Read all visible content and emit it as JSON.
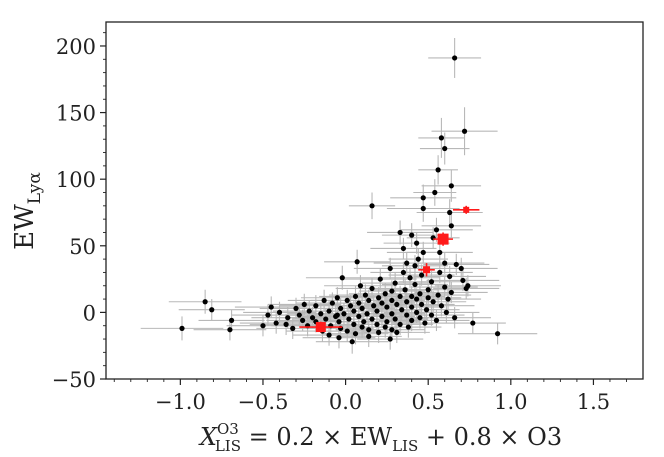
{
  "chart_data": {
    "type": "scatter",
    "title": "",
    "xlabel": {
      "var": "X",
      "var_sub": "LIS",
      "var_sup": "O3",
      "rhs_1": " = 0.2 × EW",
      "rhs_1_sub": "LIS",
      "rhs_2": " + 0.8 × O3"
    },
    "ylabel": {
      "base": "EW",
      "sub": "Lyα"
    },
    "xlim": [
      -1.45,
      1.8
    ],
    "ylim": [
      -50,
      218
    ],
    "xticks": [
      -1.0,
      -0.5,
      0.0,
      0.5,
      1.0,
      1.5
    ],
    "xtick_labels": [
      "−1.0",
      "−0.5",
      "0.0",
      "0.5",
      "1.0",
      "1.5"
    ],
    "yticks": [
      -50,
      0,
      50,
      100,
      150,
      200
    ],
    "ytick_labels": [
      "−50",
      "0",
      "50",
      "100",
      "150",
      "200"
    ],
    "grid": false,
    "colors": {
      "black": "#000000",
      "red": "#ff1a1a",
      "errorbar": "#b8b8b8",
      "axis": "#222222"
    },
    "series": [
      {
        "color": "black",
        "points": [
          {
            "x": 0.66,
            "y": 191,
            "xerr": 0.16,
            "yerr": 15
          },
          {
            "x": 0.72,
            "y": 136,
            "xerr": 0.2,
            "yerr": 18
          },
          {
            "x": 0.58,
            "y": 131,
            "xerr": 0.14,
            "yerr": 15
          },
          {
            "x": 0.6,
            "y": 123,
            "xerr": 0.15,
            "yerr": 12
          },
          {
            "x": 0.56,
            "y": 107,
            "xerr": 0.12,
            "yerr": 11
          },
          {
            "x": 0.64,
            "y": 95,
            "xerr": 0.18,
            "yerr": 12
          },
          {
            "x": 0.54,
            "y": 90,
            "xerr": 0.13,
            "yerr": 10
          },
          {
            "x": 0.47,
            "y": 86,
            "xerr": 0.2,
            "yerr": 10
          },
          {
            "x": 0.16,
            "y": 80,
            "xerr": 0.14,
            "yerr": 10
          },
          {
            "x": 0.47,
            "y": 78,
            "xerr": 0.22,
            "yerr": 10
          },
          {
            "x": 0.63,
            "y": 75,
            "xerr": 0.2,
            "yerr": 10
          },
          {
            "x": 0.64,
            "y": 65,
            "xerr": 0.18,
            "yerr": 9
          },
          {
            "x": 0.55,
            "y": 62,
            "xerr": 0.22,
            "yerr": 9
          },
          {
            "x": 0.33,
            "y": 60,
            "xerr": 0.2,
            "yerr": 9
          },
          {
            "x": 0.4,
            "y": 58,
            "xerr": 0.18,
            "yerr": 9
          },
          {
            "x": 0.53,
            "y": 56,
            "xerr": 0.16,
            "yerr": 8
          },
          {
            "x": 0.43,
            "y": 52,
            "xerr": 0.2,
            "yerr": 8
          },
          {
            "x": 0.35,
            "y": 48,
            "xerr": 0.2,
            "yerr": 8
          },
          {
            "x": 0.47,
            "y": 45,
            "xerr": 0.22,
            "yerr": 8
          },
          {
            "x": 0.44,
            "y": 40,
            "xerr": 0.18,
            "yerr": 8
          },
          {
            "x": 0.37,
            "y": 37,
            "xerr": 0.2,
            "yerr": 8
          },
          {
            "x": 0.6,
            "y": 37,
            "xerr": 0.24,
            "yerr": 8
          },
          {
            "x": 0.07,
            "y": 38,
            "xerr": 0.2,
            "yerr": 9
          },
          {
            "x": 0.67,
            "y": 36,
            "xerr": 0.2,
            "yerr": 8
          },
          {
            "x": 0.7,
            "y": 33,
            "xerr": 0.22,
            "yerr": 8
          },
          {
            "x": 0.27,
            "y": 33,
            "xerr": 0.22,
            "yerr": 8
          },
          {
            "x": 0.57,
            "y": 30,
            "xerr": 0.2,
            "yerr": 8
          },
          {
            "x": 0.46,
            "y": 28,
            "xerr": 0.2,
            "yerr": 8
          },
          {
            "x": 0.63,
            "y": 27,
            "xerr": 0.22,
            "yerr": 8
          },
          {
            "x": 0.39,
            "y": 26,
            "xerr": 0.18,
            "yerr": 8
          },
          {
            "x": -0.02,
            "y": 26,
            "xerr": 0.22,
            "yerr": 9
          },
          {
            "x": 0.71,
            "y": 24,
            "xerr": 0.22,
            "yerr": 8
          },
          {
            "x": 0.52,
            "y": 23,
            "xerr": 0.2,
            "yerr": 8
          },
          {
            "x": 0.3,
            "y": 22,
            "xerr": 0.2,
            "yerr": 8
          },
          {
            "x": 0.42,
            "y": 21,
            "xerr": 0.2,
            "yerr": 8
          },
          {
            "x": 0.74,
            "y": 20,
            "xerr": 0.2,
            "yerr": 8
          },
          {
            "x": 0.6,
            "y": 19,
            "xerr": 0.2,
            "yerr": 8
          },
          {
            "x": 0.16,
            "y": 18,
            "xerr": 0.22,
            "yerr": 8
          },
          {
            "x": 0.73,
            "y": 18,
            "xerr": 0.2,
            "yerr": 8
          },
          {
            "x": 0.5,
            "y": 17,
            "xerr": 0.22,
            "yerr": 8
          },
          {
            "x": 0.36,
            "y": 17,
            "xerr": 0.2,
            "yerr": 8
          },
          {
            "x": 0.28,
            "y": 16,
            "xerr": 0.2,
            "yerr": 8
          },
          {
            "x": 0.64,
            "y": 15,
            "xerr": 0.22,
            "yerr": 8
          },
          {
            "x": 0.45,
            "y": 14,
            "xerr": 0.2,
            "yerr": 8
          },
          {
            "x": 0.24,
            "y": 14,
            "xerr": 0.22,
            "yerr": 8
          },
          {
            "x": 0.56,
            "y": 13,
            "xerr": 0.2,
            "yerr": 8
          },
          {
            "x": 0.12,
            "y": 13,
            "xerr": 0.22,
            "yerr": 8
          },
          {
            "x": 0.4,
            "y": 12,
            "xerr": 0.2,
            "yerr": 8
          },
          {
            "x": 0.33,
            "y": 12,
            "xerr": 0.2,
            "yerr": 8
          },
          {
            "x": 0.06,
            "y": 12,
            "xerr": 0.22,
            "yerr": 8
          },
          {
            "x": 0.5,
            "y": 11,
            "xerr": 0.2,
            "yerr": 8
          },
          {
            "x": 0.2,
            "y": 11,
            "xerr": 0.2,
            "yerr": 8
          },
          {
            "x": -0.05,
            "y": 11,
            "xerr": 0.22,
            "yerr": 8
          },
          {
            "x": 0.62,
            "y": 10,
            "xerr": 0.2,
            "yerr": 8
          },
          {
            "x": 0.43,
            "y": 10,
            "xerr": 0.2,
            "yerr": 8
          },
          {
            "x": 0.28,
            "y": 9,
            "xerr": 0.2,
            "yerr": 8
          },
          {
            "x": 0.14,
            "y": 9,
            "xerr": 0.2,
            "yerr": 8
          },
          {
            "x": 0.01,
            "y": 9,
            "xerr": 0.22,
            "yerr": 8
          },
          {
            "x": -0.13,
            "y": 9,
            "xerr": 0.22,
            "yerr": 8
          },
          {
            "x": -0.85,
            "y": 8,
            "xerr": 0.22,
            "yerr": 9
          },
          {
            "x": 0.53,
            "y": 8,
            "xerr": 0.2,
            "yerr": 8
          },
          {
            "x": 0.37,
            "y": 8,
            "xerr": 0.2,
            "yerr": 8
          },
          {
            "x": 0.22,
            "y": 7,
            "xerr": 0.2,
            "yerr": 8
          },
          {
            "x": 0.08,
            "y": 7,
            "xerr": 0.2,
            "yerr": 8
          },
          {
            "x": -0.08,
            "y": 7,
            "xerr": 0.22,
            "yerr": 8
          },
          {
            "x": -0.25,
            "y": 6,
            "xerr": 0.22,
            "yerr": 8
          },
          {
            "x": 0.46,
            "y": 6,
            "xerr": 0.2,
            "yerr": 8
          },
          {
            "x": 0.31,
            "y": 6,
            "xerr": 0.2,
            "yerr": 8
          },
          {
            "x": 0.17,
            "y": 5,
            "xerr": 0.2,
            "yerr": 8
          },
          {
            "x": 0.03,
            "y": 5,
            "xerr": 0.2,
            "yerr": 8
          },
          {
            "x": -0.18,
            "y": 5,
            "xerr": 0.22,
            "yerr": 8
          },
          {
            "x": 0.58,
            "y": 5,
            "xerr": 0.2,
            "yerr": 8
          },
          {
            "x": 0.4,
            "y": 4,
            "xerr": 0.2,
            "yerr": 8
          },
          {
            "x": 0.25,
            "y": 4,
            "xerr": 0.2,
            "yerr": 8
          },
          {
            "x": 0.1,
            "y": 3,
            "xerr": 0.2,
            "yerr": 8
          },
          {
            "x": -0.03,
            "y": 3,
            "xerr": 0.2,
            "yerr": 8
          },
          {
            "x": -0.3,
            "y": 3,
            "xerr": 0.22,
            "yerr": 8
          },
          {
            "x": -0.81,
            "y": 2,
            "xerr": 0.2,
            "yerr": 8
          },
          {
            "x": 0.49,
            "y": 2,
            "xerr": 0.2,
            "yerr": 8
          },
          {
            "x": 0.34,
            "y": 2,
            "xerr": 0.2,
            "yerr": 8
          },
          {
            "x": 0.19,
            "y": 1,
            "xerr": 0.2,
            "yerr": 8
          },
          {
            "x": 0.05,
            "y": 1,
            "xerr": 0.2,
            "yerr": 8
          },
          {
            "x": -0.1,
            "y": 1,
            "xerr": 0.2,
            "yerr": 8
          },
          {
            "x": -0.22,
            "y": 1,
            "xerr": 0.22,
            "yerr": 8
          },
          {
            "x": -0.4,
            "y": 0,
            "xerr": 0.22,
            "yerr": 8
          },
          {
            "x": 0.61,
            "y": 0,
            "xerr": 0.2,
            "yerr": 8
          },
          {
            "x": 0.43,
            "y": 0,
            "xerr": 0.2,
            "yerr": 8
          },
          {
            "x": 0.28,
            "y": -1,
            "xerr": 0.2,
            "yerr": 8
          },
          {
            "x": 0.13,
            "y": -1,
            "xerr": 0.2,
            "yerr": 8
          },
          {
            "x": -0.01,
            "y": -1,
            "xerr": 0.2,
            "yerr": 8
          },
          {
            "x": -0.15,
            "y": -1,
            "xerr": 0.2,
            "yerr": 8
          },
          {
            "x": -0.28,
            "y": -2,
            "xerr": 0.22,
            "yerr": 8
          },
          {
            "x": -0.47,
            "y": -2,
            "xerr": 0.22,
            "yerr": 8
          },
          {
            "x": 0.52,
            "y": -2,
            "xerr": 0.2,
            "yerr": 8
          },
          {
            "x": 0.37,
            "y": -2,
            "xerr": 0.2,
            "yerr": 8
          },
          {
            "x": 0.22,
            "y": -3,
            "xerr": 0.2,
            "yerr": 8
          },
          {
            "x": 0.08,
            "y": -3,
            "xerr": 0.2,
            "yerr": 8
          },
          {
            "x": -0.06,
            "y": -3,
            "xerr": 0.2,
            "yerr": 8
          },
          {
            "x": -0.2,
            "y": -4,
            "xerr": 0.22,
            "yerr": 8
          },
          {
            "x": -0.35,
            "y": -4,
            "xerr": 0.22,
            "yerr": 8
          },
          {
            "x": 0.66,
            "y": -4,
            "xerr": 0.22,
            "yerr": 8
          },
          {
            "x": 0.45,
            "y": -4,
            "xerr": 0.2,
            "yerr": 8
          },
          {
            "x": 0.3,
            "y": -5,
            "xerr": 0.2,
            "yerr": 8
          },
          {
            "x": 0.16,
            "y": -5,
            "xerr": 0.2,
            "yerr": 8
          },
          {
            "x": 0.02,
            "y": -5,
            "xerr": 0.2,
            "yerr": 8
          },
          {
            "x": -0.12,
            "y": -5,
            "xerr": 0.2,
            "yerr": 8
          },
          {
            "x": -0.26,
            "y": -6,
            "xerr": 0.22,
            "yerr": 8
          },
          {
            "x": -0.69,
            "y": -6,
            "xerr": 0.2,
            "yerr": 8
          },
          {
            "x": 0.55,
            "y": -6,
            "xerr": 0.2,
            "yerr": 8
          },
          {
            "x": 0.4,
            "y": -6,
            "xerr": 0.2,
            "yerr": 8
          },
          {
            "x": 0.25,
            "y": -7,
            "xerr": 0.2,
            "yerr": 8
          },
          {
            "x": 0.11,
            "y": -7,
            "xerr": 0.2,
            "yerr": 8
          },
          {
            "x": -0.04,
            "y": -7,
            "xerr": 0.2,
            "yerr": 8
          },
          {
            "x": -0.18,
            "y": -7,
            "xerr": 0.22,
            "yerr": 8
          },
          {
            "x": -0.42,
            "y": -8,
            "xerr": 0.22,
            "yerr": 8
          },
          {
            "x": 0.77,
            "y": -8,
            "xerr": 0.2,
            "yerr": 8
          },
          {
            "x": 0.48,
            "y": -8,
            "xerr": 0.2,
            "yerr": 8
          },
          {
            "x": 0.33,
            "y": -9,
            "xerr": 0.2,
            "yerr": 8
          },
          {
            "x": 0.19,
            "y": -9,
            "xerr": 0.2,
            "yerr": 8
          },
          {
            "x": 0.05,
            "y": -9,
            "xerr": 0.2,
            "yerr": 8
          },
          {
            "x": -0.09,
            "y": -10,
            "xerr": 0.2,
            "yerr": 8
          },
          {
            "x": -0.23,
            "y": -10,
            "xerr": 0.22,
            "yerr": 8
          },
          {
            "x": -0.5,
            "y": -10,
            "xerr": 0.22,
            "yerr": 8
          },
          {
            "x": 0.38,
            "y": -11,
            "xerr": 0.2,
            "yerr": 8
          },
          {
            "x": 0.24,
            "y": -11,
            "xerr": 0.2,
            "yerr": 8
          },
          {
            "x": 0.1,
            "y": -11,
            "xerr": 0.2,
            "yerr": 8
          },
          {
            "x": -0.03,
            "y": -12,
            "xerr": 0.2,
            "yerr": 8
          },
          {
            "x": -0.99,
            "y": -12,
            "xerr": 0.25,
            "yerr": 9
          },
          {
            "x": -0.32,
            "y": -12,
            "xerr": 0.22,
            "yerr": 8
          },
          {
            "x": 0.28,
            "y": -13,
            "xerr": 0.2,
            "yerr": 8
          },
          {
            "x": 0.14,
            "y": -13,
            "xerr": 0.2,
            "yerr": 8
          },
          {
            "x": -0.7,
            "y": -13,
            "xerr": 0.22,
            "yerr": 8
          },
          {
            "x": 0.01,
            "y": -14,
            "xerr": 0.2,
            "yerr": 8
          },
          {
            "x": -0.14,
            "y": -14,
            "xerr": 0.22,
            "yerr": 8
          },
          {
            "x": 0.2,
            "y": -15,
            "xerr": 0.2,
            "yerr": 8
          },
          {
            "x": 0.92,
            "y": -16,
            "xerr": 0.24,
            "yerr": 8
          },
          {
            "x": 0.06,
            "y": -16,
            "xerr": 0.2,
            "yerr": 8
          },
          {
            "x": -0.1,
            "y": -17,
            "xerr": 0.22,
            "yerr": 8
          },
          {
            "x": 0.14,
            "y": -18,
            "xerr": 0.2,
            "yerr": 8
          },
          {
            "x": -0.04,
            "y": -19,
            "xerr": 0.22,
            "yerr": 8
          },
          {
            "x": 0.27,
            "y": -20,
            "xerr": 0.2,
            "yerr": 8
          },
          {
            "x": 0.04,
            "y": -22,
            "xerr": 0.22,
            "yerr": 9
          },
          {
            "x": -0.05,
            "y": -2,
            "xerr": 0.2,
            "yerr": 8
          },
          {
            "x": 0.35,
            "y": 30,
            "xerr": 0.2,
            "yerr": 8
          },
          {
            "x": 0.21,
            "y": 25,
            "xerr": 0.22,
            "yerr": 8
          },
          {
            "x": 0.42,
            "y": 35,
            "xerr": 0.2,
            "yerr": 8
          },
          {
            "x": 0.09,
            "y": 20,
            "xerr": 0.22,
            "yerr": 8
          },
          {
            "x": 0.31,
            "y": -15,
            "xerr": 0.2,
            "yerr": 8
          },
          {
            "x": -0.36,
            "y": -9,
            "xerr": 0.22,
            "yerr": 8
          },
          {
            "x": -0.45,
            "y": 4,
            "xerr": 0.22,
            "yerr": 8
          },
          {
            "x": 0.57,
            "y": 45,
            "xerr": 0.2,
            "yerr": 8
          }
        ]
      },
      {
        "color": "red",
        "points": [
          {
            "x": 0.73,
            "y": 77,
            "xerr": 0.08,
            "yerr": 3,
            "size": 6
          },
          {
            "x": 0.59,
            "y": 55,
            "xerr": 0.06,
            "yerr": 5,
            "size": 11
          },
          {
            "x": 0.49,
            "y": 32,
            "xerr": 0.05,
            "yerr": 5,
            "size": 7
          },
          {
            "x": -0.15,
            "y": -11,
            "xerr": 0.13,
            "yerr": 4,
            "size": 10
          }
        ]
      }
    ]
  }
}
